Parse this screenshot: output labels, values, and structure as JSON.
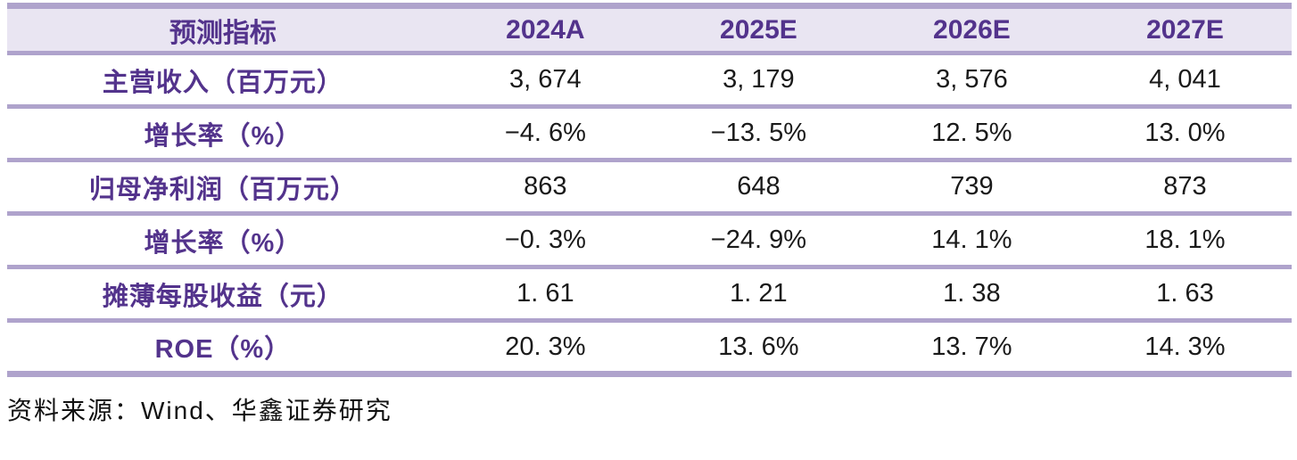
{
  "table": {
    "header": {
      "cells": [
        "预测指标",
        "2024A",
        "2025E",
        "2026E",
        "2027E"
      ]
    },
    "rows": [
      {
        "cells": [
          "主营收入（百万元）",
          "3, 674",
          "3, 179",
          "3, 576",
          "4, 041"
        ]
      },
      {
        "cells": [
          "增长率（%）",
          "−4. 6%",
          "−13. 5%",
          "12. 5%",
          "13. 0%"
        ]
      },
      {
        "cells": [
          "归母净利润（百万元）",
          "863",
          "648",
          "739",
          "873"
        ]
      },
      {
        "cells": [
          "增长率（%）",
          "−0. 3%",
          "−24. 9%",
          "14. 1%",
          "18. 1%"
        ]
      },
      {
        "cells": [
          "摊薄每股收益（元）",
          "1. 61",
          "1. 21",
          "1. 38",
          "1. 63"
        ]
      },
      {
        "cells": [
          "ROE（%）",
          "20. 3%",
          "13. 6%",
          "13. 7%",
          "14. 3%"
        ]
      }
    ]
  },
  "footer": {
    "source_text": "资料来源：Wind、华鑫证券研究"
  },
  "colors": {
    "accent": "#53338C",
    "divider": "#AFA3CC",
    "header-bg": "#E9E5F2",
    "value-color": "#1A1A1A",
    "page-bg": "#FFFFFF"
  }
}
